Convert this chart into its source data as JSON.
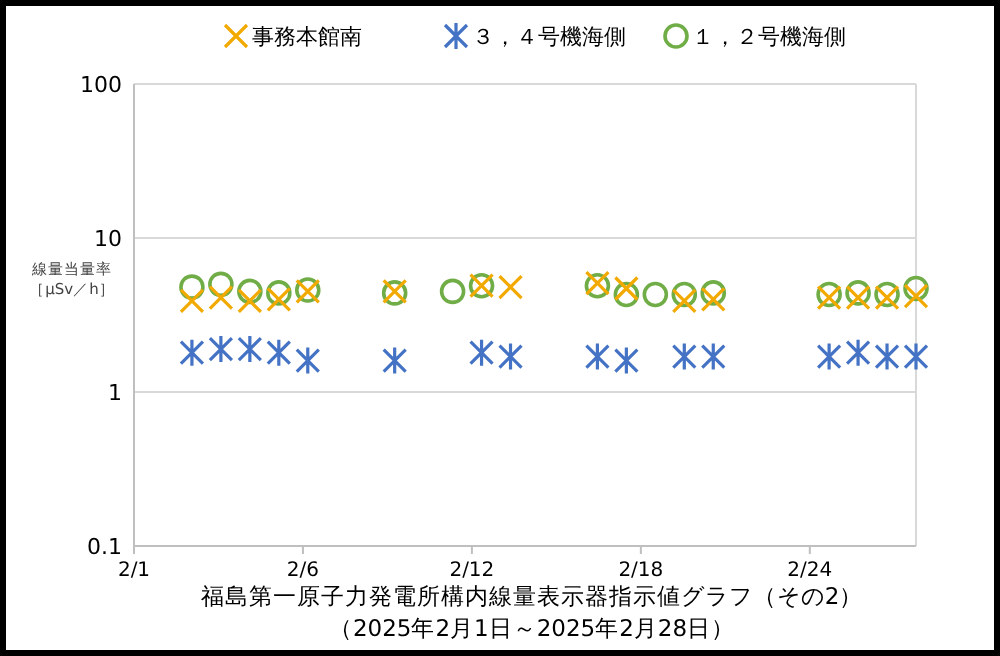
{
  "chart_data": {
    "type": "scatter",
    "title": "福島第一原子力発電所構内線量表示器指示値グラフ（その2）",
    "subtitle": "（2025年2月1日～2025年2月28日）",
    "ylabel": "線量当量率［μSv／h］",
    "x": [
      "2025-02-03",
      "2025-02-04",
      "2025-02-05",
      "2025-02-06",
      "2025-02-07",
      "2025-02-10",
      "2025-02-12",
      "2025-02-13",
      "2025-02-14",
      "2025-02-17",
      "2025-02-18",
      "2025-02-19",
      "2025-02-20",
      "2025-02-21",
      "2025-02-25",
      "2025-02-26",
      "2025-02-27",
      "2025-02-28"
    ],
    "series": [
      {
        "name": "事務本館南",
        "color": "#f2a900",
        "marker": "cross",
        "values": [
          3.9,
          4.1,
          3.9,
          4.0,
          4.5,
          4.5,
          null,
          4.9,
          4.8,
          5.1,
          4.7,
          null,
          3.9,
          4.0,
          4.1,
          4.1,
          4.1,
          4.2
        ]
      },
      {
        "name": "３，４号機海側",
        "color": "#4472c4",
        "values": [
          1.8,
          1.9,
          1.9,
          1.8,
          1.6,
          1.6,
          null,
          1.8,
          1.7,
          1.7,
          1.6,
          null,
          1.7,
          1.7,
          1.7,
          1.8,
          1.7,
          1.7
        ]
      },
      {
        "name": "１，２号機海側",
        "color": "#70ad47",
        "marker": "circle",
        "values": [
          4.8,
          5.0,
          4.5,
          4.4,
          4.6,
          4.4,
          4.5,
          4.9,
          null,
          4.9,
          4.3,
          4.3,
          4.3,
          4.4,
          4.3,
          4.4,
          4.3,
          4.7
        ]
      }
    ],
    "xlim": [
      "2025-02-01",
      "2025-02-28"
    ],
    "xticks": [
      {
        "value": "2025-02-01",
        "label": "2/1"
      },
      {
        "value": "2025-02-06T20:00",
        "label": "2/6"
      },
      {
        "value": "2025-02-12T16:00",
        "label": "2/12"
      },
      {
        "value": "2025-02-18T12:00",
        "label": "2/18"
      },
      {
        "value": "2025-02-24T08:00",
        "label": "2/24"
      }
    ],
    "log": true,
    "ylim": [
      0.1,
      100
    ],
    "yticks": [
      0.1,
      1,
      10,
      100
    ],
    "grid": "y",
    "legend": "top"
  }
}
